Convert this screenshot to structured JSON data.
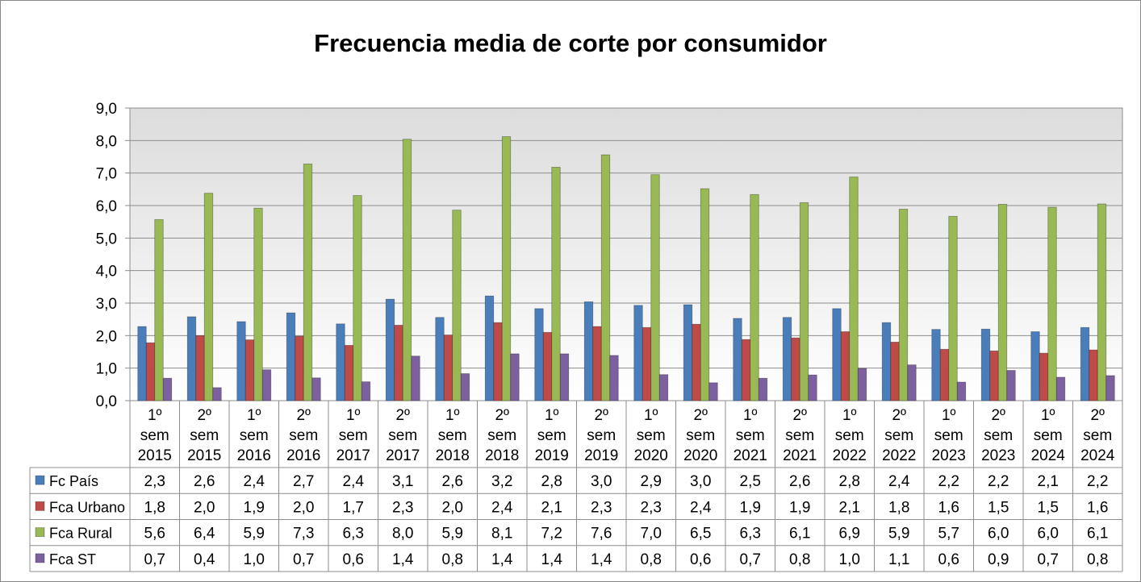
{
  "chart_data": {
    "type": "bar",
    "title": "Frecuencia media de corte por consumidor",
    "xlabel": "",
    "ylabel": "",
    "ylim": [
      0,
      9
    ],
    "yticks": [
      "0,0",
      "1,0",
      "2,0",
      "3,0",
      "4,0",
      "5,0",
      "6,0",
      "7,0",
      "8,0",
      "9,0"
    ],
    "grid": true,
    "legend_position": "data-table-left",
    "categories": [
      [
        "1º",
        "sem",
        "2015"
      ],
      [
        "2º",
        "sem",
        "2015"
      ],
      [
        "1º",
        "sem",
        "2016"
      ],
      [
        "2º",
        "sem",
        "2016"
      ],
      [
        "1º",
        "sem",
        "2017"
      ],
      [
        "2º",
        "sem",
        "2017"
      ],
      [
        "1º",
        "sem",
        "2018"
      ],
      [
        "2º",
        "sem",
        "2018"
      ],
      [
        "1º",
        "sem",
        "2019"
      ],
      [
        "2º",
        "sem",
        "2019"
      ],
      [
        "1º",
        "sem",
        "2020"
      ],
      [
        "2º",
        "sem",
        "2020"
      ],
      [
        "1º",
        "sem",
        "2021"
      ],
      [
        "2º",
        "sem",
        "2021"
      ],
      [
        "1º",
        "sem",
        "2022"
      ],
      [
        "2º",
        "sem",
        "2022"
      ],
      [
        "1º",
        "sem",
        "2023"
      ],
      [
        "2º",
        "sem",
        "2023"
      ],
      [
        "1º",
        "sem",
        "2024"
      ],
      [
        "2º",
        "sem",
        "2024"
      ]
    ],
    "series": [
      {
        "name": "Fc País",
        "color": "#4a7ebb",
        "values": [
          2.28,
          2.58,
          2.43,
          2.7,
          2.36,
          3.12,
          2.56,
          3.22,
          2.83,
          3.04,
          2.93,
          2.95,
          2.53,
          2.56,
          2.83,
          2.4,
          2.19,
          2.2,
          2.12,
          2.25
        ],
        "labels": [
          "2,3",
          "2,6",
          "2,4",
          "2,7",
          "2,4",
          "3,1",
          "2,6",
          "3,2",
          "2,8",
          "3,0",
          "2,9",
          "3,0",
          "2,5",
          "2,6",
          "2,8",
          "2,4",
          "2,2",
          "2,2",
          "2,1",
          "2,2"
        ]
      },
      {
        "name": "Fca Urbano",
        "color": "#be4b48",
        "values": [
          1.78,
          2.0,
          1.87,
          1.98,
          1.7,
          2.32,
          2.02,
          2.4,
          2.1,
          2.28,
          2.25,
          2.35,
          1.88,
          1.93,
          2.12,
          1.8,
          1.58,
          1.53,
          1.46,
          1.56
        ],
        "labels": [
          "1,8",
          "2,0",
          "1,9",
          "2,0",
          "1,7",
          "2,3",
          "2,0",
          "2,4",
          "2,1",
          "2,3",
          "2,3",
          "2,4",
          "1,9",
          "1,9",
          "2,1",
          "1,8",
          "1,6",
          "1,5",
          "1,5",
          "1,6"
        ]
      },
      {
        "name": "Fca Rural",
        "color": "#98b954",
        "values": [
          5.57,
          6.38,
          5.92,
          7.28,
          6.31,
          8.04,
          5.86,
          8.12,
          7.18,
          7.56,
          6.95,
          6.52,
          6.34,
          6.09,
          6.88,
          5.89,
          5.67,
          6.04,
          5.95,
          6.05
        ],
        "labels": [
          "5,6",
          "6,4",
          "5,9",
          "7,3",
          "6,3",
          "8,0",
          "5,9",
          "8,1",
          "7,2",
          "7,6",
          "7,0",
          "6,5",
          "6,3",
          "6,1",
          "6,9",
          "5,9",
          "5,7",
          "6,0",
          "6,0",
          "6,1"
        ]
      },
      {
        "name": "Fca ST",
        "color": "#7d60a0",
        "values": [
          0.69,
          0.4,
          0.95,
          0.7,
          0.58,
          1.37,
          0.83,
          1.44,
          1.44,
          1.39,
          0.8,
          0.55,
          0.69,
          0.79,
          0.99,
          1.1,
          0.57,
          0.93,
          0.72,
          0.77
        ],
        "labels": [
          "0,7",
          "0,4",
          "1,0",
          "0,7",
          "0,6",
          "1,4",
          "0,8",
          "1,4",
          "1,4",
          "1,4",
          "0,8",
          "0,6",
          "0,7",
          "0,8",
          "1,0",
          "1,1",
          "0,6",
          "0,9",
          "0,7",
          "0,8"
        ]
      }
    ]
  }
}
